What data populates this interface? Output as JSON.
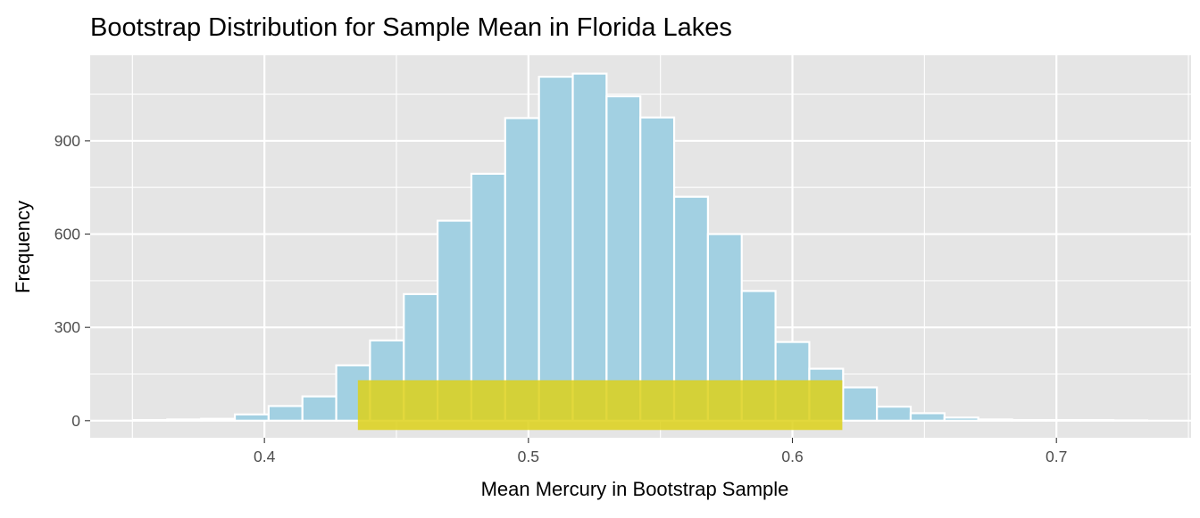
{
  "chart_data": {
    "type": "bar",
    "subtype": "histogram",
    "title": "Bootstrap Distribution for Sample Mean in Florida Lakes",
    "xlabel": "Mean Mercury in Bootstrap Sample",
    "ylabel": "Frequency",
    "xlim": [
      0.334,
      0.751
    ],
    "ylim": [
      -55,
      1175
    ],
    "x_ticks": [
      0.4,
      0.5,
      0.6,
      0.7
    ],
    "x_tick_labels": [
      "0.4",
      "0.5",
      "0.6",
      "0.7"
    ],
    "y_ticks": [
      0,
      300,
      600,
      900
    ],
    "y_tick_labels": [
      "0",
      "300",
      "600",
      "900"
    ],
    "grid": true,
    "bin_width": 0.0128,
    "bins": [
      {
        "x": 0.3568,
        "count": 2
      },
      {
        "x": 0.3696,
        "count": 4
      },
      {
        "x": 0.3824,
        "count": 6
      },
      {
        "x": 0.3952,
        "count": 20
      },
      {
        "x": 0.408,
        "count": 47
      },
      {
        "x": 0.4208,
        "count": 78
      },
      {
        "x": 0.4336,
        "count": 178
      },
      {
        "x": 0.4464,
        "count": 258
      },
      {
        "x": 0.4592,
        "count": 407
      },
      {
        "x": 0.472,
        "count": 643
      },
      {
        "x": 0.4848,
        "count": 794
      },
      {
        "x": 0.4976,
        "count": 973
      },
      {
        "x": 0.5104,
        "count": 1106
      },
      {
        "x": 0.5232,
        "count": 1116
      },
      {
        "x": 0.536,
        "count": 1043
      },
      {
        "x": 0.5488,
        "count": 975
      },
      {
        "x": 0.5616,
        "count": 720
      },
      {
        "x": 0.5744,
        "count": 600
      },
      {
        "x": 0.5872,
        "count": 417
      },
      {
        "x": 0.6,
        "count": 253
      },
      {
        "x": 0.6128,
        "count": 167
      },
      {
        "x": 0.6256,
        "count": 107
      },
      {
        "x": 0.6384,
        "count": 45
      },
      {
        "x": 0.6512,
        "count": 24
      },
      {
        "x": 0.664,
        "count": 10
      },
      {
        "x": 0.6768,
        "count": 4
      },
      {
        "x": 0.6896,
        "count": 2
      },
      {
        "x": 0.7024,
        "count": 2
      },
      {
        "x": 0.7152,
        "count": 2
      },
      {
        "x": 0.728,
        "count": 1
      }
    ],
    "interval": {
      "x_low": 0.4354,
      "x_high": 0.6189,
      "y_low": -30,
      "y_high": 130
    },
    "colors": {
      "panel_background": "#e5e5e5",
      "grid": "#ffffff",
      "bar_fill": "#a2d0e2",
      "bar_outline": "#ffffff",
      "interval_fill": "#ddd11a"
    }
  }
}
